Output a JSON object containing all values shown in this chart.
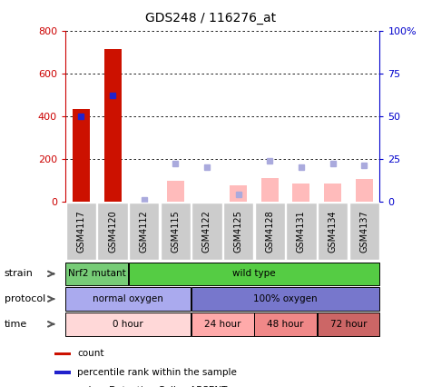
{
  "title": "GDS248 / 116276_at",
  "samples": [
    "GSM4117",
    "GSM4120",
    "GSM4112",
    "GSM4115",
    "GSM4122",
    "GSM4125",
    "GSM4128",
    "GSM4131",
    "GSM4134",
    "GSM4137"
  ],
  "bar_values": [
    435,
    715,
    0,
    0,
    0,
    0,
    0,
    0,
    0,
    0
  ],
  "absent_bar_values": [
    0,
    0,
    0,
    95,
    0,
    75,
    110,
    85,
    85,
    105
  ],
  "rank_blue_present": [
    50,
    62,
    0,
    0,
    0,
    0,
    0,
    0,
    0,
    0
  ],
  "rank_blue_absent": [
    0,
    0,
    1,
    22,
    20,
    4,
    24,
    20,
    22,
    21
  ],
  "ylim_left": [
    0,
    800
  ],
  "ylim_right": [
    0,
    100
  ],
  "yticks_left": [
    0,
    200,
    400,
    600,
    800
  ],
  "yticks_right": [
    0,
    25,
    50,
    75,
    100
  ],
  "ytick_labels_left": [
    "0",
    "200",
    "400",
    "600",
    "800"
  ],
  "ytick_labels_right": [
    "0",
    "25",
    "50",
    "75",
    "100%"
  ],
  "strain_groups": [
    {
      "label": "Nrf2 mutant",
      "start": 0,
      "end": 2,
      "color": "#77cc77"
    },
    {
      "label": "wild type",
      "start": 2,
      "end": 10,
      "color": "#55cc44"
    }
  ],
  "protocol_groups": [
    {
      "label": "normal oxygen",
      "start": 0,
      "end": 4,
      "color": "#aaaaee"
    },
    {
      "label": "100% oxygen",
      "start": 4,
      "end": 10,
      "color": "#7777cc"
    }
  ],
  "time_groups": [
    {
      "label": "0 hour",
      "start": 0,
      "end": 4,
      "color": "#ffd8d8"
    },
    {
      "label": "24 hour",
      "start": 4,
      "end": 6,
      "color": "#ffaaaa"
    },
    {
      "label": "48 hour",
      "start": 6,
      "end": 8,
      "color": "#f08888"
    },
    {
      "label": "72 hour",
      "start": 8,
      "end": 10,
      "color": "#cc6666"
    }
  ],
  "red_bar_color": "#cc1100",
  "absent_bar_color": "#ffbbbb",
  "blue_present_color": "#2222cc",
  "blue_absent_color": "#aaaadd",
  "sample_bg_color": "#cccccc",
  "chart_bg_color": "#ffffff"
}
